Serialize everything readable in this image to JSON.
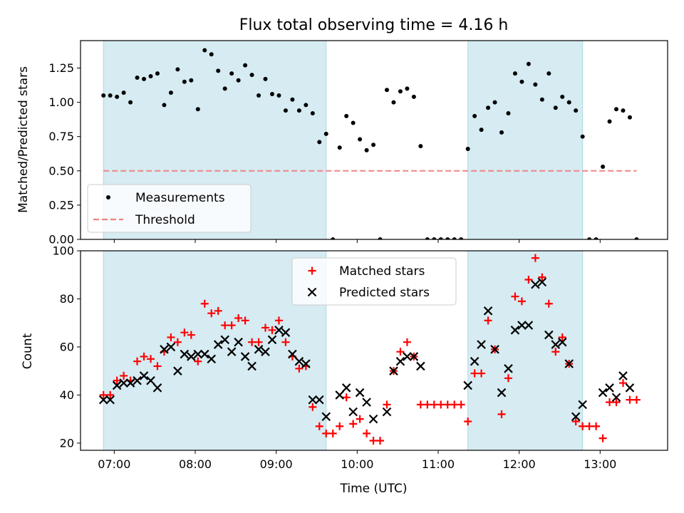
{
  "chart_data": [
    {
      "type": "scatter",
      "title": "Flux total observing time = 4.16 h",
      "xlabel": "",
      "ylabel": "Matched/Predicted stars",
      "xlim": [
        "06:35",
        "13:50"
      ],
      "ylim": [
        0,
        1.45
      ],
      "yticks": [
        0.0,
        0.25,
        0.5,
        0.75,
        1.0,
        1.25
      ],
      "ytick_labels": [
        "0.00",
        "0.25",
        "0.50",
        "0.75",
        "1.00",
        "1.25"
      ],
      "xticks": [
        "07:00",
        "08:00",
        "09:00",
        "10:00",
        "11:00",
        "12:00",
        "13:00"
      ],
      "shaded_intervals": [
        [
          "06:52",
          "09:37"
        ],
        [
          "11:22",
          "12:47"
        ]
      ],
      "shade_color": "#add8e6",
      "legend_position": "lower-left",
      "series": [
        {
          "name": "Measurements",
          "color": "#000000",
          "marker": "dot",
          "points": [
            [
              "06:52",
              1.05
            ],
            [
              "06:57",
              1.05
            ],
            [
              "07:02",
              1.04
            ],
            [
              "07:07",
              1.07
            ],
            [
              "07:12",
              1.0
            ],
            [
              "07:17",
              1.18
            ],
            [
              "07:22",
              1.17
            ],
            [
              "07:27",
              1.19
            ],
            [
              "07:32",
              1.21
            ],
            [
              "07:37",
              0.98
            ],
            [
              "07:42",
              1.07
            ],
            [
              "07:47",
              1.24
            ],
            [
              "07:52",
              1.15
            ],
            [
              "07:57",
              1.16
            ],
            [
              "08:02",
              0.95
            ],
            [
              "08:07",
              1.38
            ],
            [
              "08:12",
              1.35
            ],
            [
              "08:17",
              1.23
            ],
            [
              "08:22",
              1.1
            ],
            [
              "08:27",
              1.21
            ],
            [
              "08:32",
              1.16
            ],
            [
              "08:37",
              1.27
            ],
            [
              "08:42",
              1.2
            ],
            [
              "08:47",
              1.05
            ],
            [
              "08:52",
              1.17
            ],
            [
              "08:57",
              1.06
            ],
            [
              "09:02",
              1.05
            ],
            [
              "09:07",
              0.94
            ],
            [
              "09:12",
              1.02
            ],
            [
              "09:17",
              0.94
            ],
            [
              "09:22",
              0.98
            ],
            [
              "09:27",
              0.92
            ],
            [
              "09:32",
              0.71
            ],
            [
              "09:37",
              0.77
            ],
            [
              "09:42",
              0.0
            ],
            [
              "09:47",
              0.67
            ],
            [
              "09:52",
              0.9
            ],
            [
              "09:57",
              0.85
            ],
            [
              "10:02",
              0.73
            ],
            [
              "10:07",
              0.65
            ],
            [
              "10:12",
              0.69
            ],
            [
              "10:17",
              0.0
            ],
            [
              "10:22",
              1.09
            ],
            [
              "10:27",
              1.0
            ],
            [
              "10:32",
              1.08
            ],
            [
              "10:37",
              1.1
            ],
            [
              "10:42",
              1.04
            ],
            [
              "10:47",
              0.68
            ],
            [
              "10:52",
              0.0
            ],
            [
              "10:57",
              0.0
            ],
            [
              "11:02",
              0.0
            ],
            [
              "11:07",
              0.0
            ],
            [
              "11:12",
              0.0
            ],
            [
              "11:17",
              0.0
            ],
            [
              "11:22",
              0.66
            ],
            [
              "11:27",
              0.9
            ],
            [
              "11:32",
              0.8
            ],
            [
              "11:37",
              0.96
            ],
            [
              "11:42",
              1.0
            ],
            [
              "11:47",
              0.78
            ],
            [
              "11:52",
              0.92
            ],
            [
              "11:57",
              1.21
            ],
            [
              "12:02",
              1.15
            ],
            [
              "12:07",
              1.28
            ],
            [
              "12:12",
              1.13
            ],
            [
              "12:17",
              1.02
            ],
            [
              "12:22",
              1.21
            ],
            [
              "12:27",
              0.96
            ],
            [
              "12:32",
              1.04
            ],
            [
              "12:37",
              1.0
            ],
            [
              "12:42",
              0.94
            ],
            [
              "12:47",
              0.75
            ],
            [
              "12:52",
              0.0
            ],
            [
              "12:57",
              0.0
            ],
            [
              "13:02",
              0.53
            ],
            [
              "13:07",
              0.86
            ],
            [
              "13:12",
              0.95
            ],
            [
              "13:17",
              0.94
            ],
            [
              "13:22",
              0.89
            ],
            [
              "13:27",
              0.0
            ]
          ]
        },
        {
          "name": "Threshold",
          "color": "#f08080",
          "style": "dashed",
          "points": [
            [
              "06:52",
              0.5
            ],
            [
              "13:27",
              0.5
            ]
          ]
        }
      ]
    },
    {
      "type": "scatter",
      "title": "",
      "xlabel": "Time (UTC)",
      "ylabel": "Count",
      "xlim": [
        "06:35",
        "13:50"
      ],
      "ylim": [
        17,
        100
      ],
      "yticks": [
        20,
        40,
        60,
        80,
        100
      ],
      "ytick_labels": [
        "20",
        "40",
        "60",
        "80",
        "100"
      ],
      "xticks": [
        "07:00",
        "08:00",
        "09:00",
        "10:00",
        "11:00",
        "12:00",
        "13:00"
      ],
      "shaded_intervals": [
        [
          "06:52",
          "09:37"
        ],
        [
          "11:22",
          "12:47"
        ]
      ],
      "shade_color": "#add8e6",
      "legend_position": "upper-center",
      "series": [
        {
          "name": "Matched stars",
          "color": "#ff0000",
          "marker": "plus",
          "points": [
            [
              "06:52",
              40
            ],
            [
              "06:57",
              40
            ],
            [
              "07:02",
              46
            ],
            [
              "07:07",
              48
            ],
            [
              "07:12",
              46
            ],
            [
              "07:17",
              54
            ],
            [
              "07:22",
              56
            ],
            [
              "07:27",
              55
            ],
            [
              "07:32",
              52
            ],
            [
              "07:37",
              58
            ],
            [
              "07:42",
              64
            ],
            [
              "07:47",
              62
            ],
            [
              "07:52",
              66
            ],
            [
              "07:57",
              65
            ],
            [
              "08:02",
              54
            ],
            [
              "08:07",
              78
            ],
            [
              "08:12",
              74
            ],
            [
              "08:17",
              75
            ],
            [
              "08:22",
              69
            ],
            [
              "08:27",
              69
            ],
            [
              "08:32",
              72
            ],
            [
              "08:37",
              71
            ],
            [
              "08:42",
              62
            ],
            [
              "08:47",
              62
            ],
            [
              "08:52",
              68
            ],
            [
              "08:57",
              67
            ],
            [
              "09:02",
              71
            ],
            [
              "09:07",
              62
            ],
            [
              "09:12",
              56
            ],
            [
              "09:17",
              51
            ],
            [
              "09:22",
              52
            ],
            [
              "09:27",
              35
            ],
            [
              "09:32",
              27
            ],
            [
              "09:37",
              24
            ],
            [
              "09:42",
              24
            ],
            [
              "09:47",
              27
            ],
            [
              "09:52",
              39
            ],
            [
              "09:57",
              28
            ],
            [
              "10:02",
              30
            ],
            [
              "10:07",
              24
            ],
            [
              "10:12",
              21
            ],
            [
              "10:17",
              21
            ],
            [
              "10:22",
              36
            ],
            [
              "10:27",
              50
            ],
            [
              "10:32",
              58
            ],
            [
              "10:37",
              62
            ],
            [
              "10:42",
              56
            ],
            [
              "10:47",
              36
            ],
            [
              "10:52",
              36
            ],
            [
              "10:57",
              36
            ],
            [
              "11:02",
              36
            ],
            [
              "11:07",
              36
            ],
            [
              "11:12",
              36
            ],
            [
              "11:17",
              36
            ],
            [
              "11:22",
              29
            ],
            [
              "11:27",
              49
            ],
            [
              "11:32",
              49
            ],
            [
              "11:37",
              71
            ],
            [
              "11:42",
              59
            ],
            [
              "11:47",
              32
            ],
            [
              "11:52",
              47
            ],
            [
              "11:57",
              81
            ],
            [
              "12:02",
              79
            ],
            [
              "12:07",
              88
            ],
            [
              "12:12",
              97
            ],
            [
              "12:17",
              89
            ],
            [
              "12:22",
              78
            ],
            [
              "12:27",
              58
            ],
            [
              "12:32",
              64
            ],
            [
              "12:37",
              53
            ],
            [
              "12:42",
              29
            ],
            [
              "12:47",
              27
            ],
            [
              "12:52",
              27
            ],
            [
              "12:57",
              27
            ],
            [
              "13:02",
              22
            ],
            [
              "13:07",
              37
            ],
            [
              "13:12",
              37
            ],
            [
              "13:17",
              45
            ],
            [
              "13:22",
              38
            ],
            [
              "13:27",
              38
            ]
          ]
        },
        {
          "name": "Predicted stars",
          "color": "#000000",
          "marker": "x",
          "points": [
            [
              "06:52",
              38
            ],
            [
              "06:57",
              38
            ],
            [
              "07:02",
              44
            ],
            [
              "07:07",
              45
            ],
            [
              "07:12",
              45
            ],
            [
              "07:17",
              46
            ],
            [
              "07:22",
              48
            ],
            [
              "07:27",
              46
            ],
            [
              "07:32",
              43
            ],
            [
              "07:37",
              59
            ],
            [
              "07:42",
              60
            ],
            [
              "07:47",
              50
            ],
            [
              "07:52",
              57
            ],
            [
              "07:57",
              56
            ],
            [
              "08:02",
              57
            ],
            [
              "08:07",
              57
            ],
            [
              "08:12",
              55
            ],
            [
              "08:17",
              61
            ],
            [
              "08:22",
              63
            ],
            [
              "08:27",
              58
            ],
            [
              "08:32",
              62
            ],
            [
              "08:37",
              56
            ],
            [
              "08:42",
              52
            ],
            [
              "08:47",
              59
            ],
            [
              "08:52",
              58
            ],
            [
              "08:57",
              63
            ],
            [
              "09:02",
              67
            ],
            [
              "09:07",
              66
            ],
            [
              "09:12",
              57
            ],
            [
              "09:17",
              54
            ],
            [
              "09:22",
              53
            ],
            [
              "09:27",
              38
            ],
            [
              "09:32",
              38
            ],
            [
              "09:37",
              31
            ],
            [
              "09:47",
              40
            ],
            [
              "09:52",
              43
            ],
            [
              "09:57",
              33
            ],
            [
              "10:02",
              41
            ],
            [
              "10:07",
              37
            ],
            [
              "10:12",
              30
            ],
            [
              "10:22",
              33
            ],
            [
              "10:27",
              50
            ],
            [
              "10:32",
              54
            ],
            [
              "10:37",
              56
            ],
            [
              "10:42",
              56
            ],
            [
              "10:47",
              52
            ],
            [
              "11:22",
              44
            ],
            [
              "11:27",
              54
            ],
            [
              "11:32",
              61
            ],
            [
              "11:37",
              75
            ],
            [
              "11:42",
              59
            ],
            [
              "11:47",
              41
            ],
            [
              "11:52",
              51
            ],
            [
              "11:57",
              67
            ],
            [
              "12:02",
              69
            ],
            [
              "12:07",
              69
            ],
            [
              "12:12",
              86
            ],
            [
              "12:17",
              87
            ],
            [
              "12:22",
              65
            ],
            [
              "12:27",
              61
            ],
            [
              "12:32",
              62
            ],
            [
              "12:37",
              53
            ],
            [
              "12:42",
              31
            ],
            [
              "12:47",
              36
            ],
            [
              "13:02",
              41
            ],
            [
              "13:07",
              43
            ],
            [
              "13:12",
              39
            ],
            [
              "13:17",
              48
            ],
            [
              "13:22",
              43
            ]
          ]
        }
      ]
    }
  ]
}
